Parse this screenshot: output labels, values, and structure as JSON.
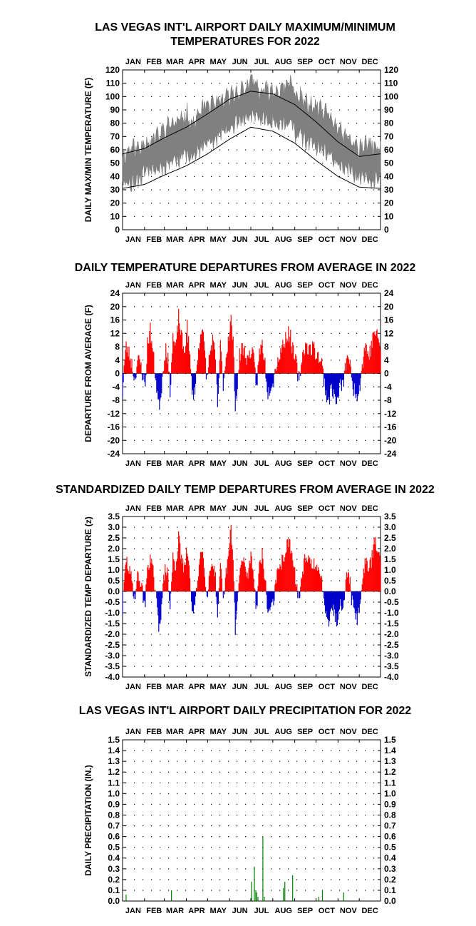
{
  "colors": {
    "range_fill": "#808080",
    "normal_line": "#000000",
    "positive": "#ff0000",
    "negative": "#0000cc",
    "precip": "#008000",
    "gridDots": "#000000"
  },
  "months": [
    "JAN",
    "FEB",
    "MAR",
    "APR",
    "MAY",
    "JUN",
    "JUL",
    "AUG",
    "SEP",
    "OCT",
    "NOV",
    "DEC"
  ],
  "chart_data": [
    {
      "type": "area",
      "title": "LAS VEGAS INT'L AIRPORT DAILY MAXIMUM/MINIMUM",
      "subtitle": "TEMPERATURES FOR 2022",
      "ylabel": "DAILY MAX/MIN TEMPERATURE (F)",
      "ylim": [
        0,
        120
      ],
      "yticks": [
        0,
        10,
        20,
        30,
        40,
        50,
        60,
        70,
        80,
        90,
        100,
        110,
        120
      ],
      "x_label_mode": "month",
      "grid": true,
      "series": [
        {
          "name": "Daily max/min range",
          "kind": "band",
          "high_knots": [
            [
              1,
              55
            ],
            [
              15,
              62
            ],
            [
              25,
              60
            ],
            [
              32,
              68
            ],
            [
              40,
              65
            ],
            [
              50,
              70
            ],
            [
              60,
              75
            ],
            [
              70,
              80
            ],
            [
              80,
              80
            ],
            [
              91,
              88
            ],
            [
              100,
              78
            ],
            [
              110,
              88
            ],
            [
              120,
              95
            ],
            [
              131,
              92
            ],
            [
              140,
              96
            ],
            [
              152,
              100
            ],
            [
              160,
              103
            ],
            [
              170,
              105
            ],
            [
              178,
              108
            ],
            [
              186,
              112
            ],
            [
              195,
              103
            ],
            [
              205,
              104
            ],
            [
              215,
              104
            ],
            [
              225,
              105
            ],
            [
              232,
              106
            ],
            [
              238,
              112
            ],
            [
              244,
              102
            ],
            [
              252,
              100
            ],
            [
              262,
              93
            ],
            [
              274,
              92
            ],
            [
              285,
              88
            ],
            [
              295,
              85
            ],
            [
              305,
              74
            ],
            [
              315,
              70
            ],
            [
              325,
              66
            ],
            [
              335,
              60
            ],
            [
              345,
              64
            ],
            [
              355,
              62
            ],
            [
              365,
              60
            ]
          ],
          "low_knots": [
            [
              1,
              36
            ],
            [
              15,
              35
            ],
            [
              25,
              38
            ],
            [
              32,
              45
            ],
            [
              40,
              46
            ],
            [
              50,
              45
            ],
            [
              60,
              48
            ],
            [
              70,
              52
            ],
            [
              80,
              53
            ],
            [
              91,
              58
            ],
            [
              100,
              55
            ],
            [
              110,
              60
            ],
            [
              120,
              65
            ],
            [
              131,
              68
            ],
            [
              140,
              72
            ],
            [
              152,
              76
            ],
            [
              160,
              80
            ],
            [
              170,
              82
            ],
            [
              178,
              85
            ],
            [
              186,
              85
            ],
            [
              195,
              84
            ],
            [
              205,
              82
            ],
            [
              215,
              82
            ],
            [
              225,
              80
            ],
            [
              232,
              78
            ],
            [
              238,
              82
            ],
            [
              244,
              72
            ],
            [
              252,
              70
            ],
            [
              262,
              66
            ],
            [
              274,
              62
            ],
            [
              285,
              58
            ],
            [
              295,
              54
            ],
            [
              305,
              50
            ],
            [
              315,
              46
            ],
            [
              325,
              42
            ],
            [
              335,
              40
            ],
            [
              345,
              38
            ],
            [
              355,
              36
            ],
            [
              365,
              40
            ]
          ]
        },
        {
          "name": "Normal high",
          "kind": "line",
          "knots": [
            [
              1,
              57
            ],
            [
              32,
              61
            ],
            [
              60,
              69
            ],
            [
              91,
              77
            ],
            [
              121,
              87
            ],
            [
              152,
              98
            ],
            [
              182,
              104
            ],
            [
              213,
              102
            ],
            [
              244,
              94
            ],
            [
              274,
              81
            ],
            [
              305,
              66
            ],
            [
              335,
              55
            ],
            [
              365,
              57
            ]
          ]
        },
        {
          "name": "Normal low",
          "kind": "line",
          "knots": [
            [
              1,
              31
            ],
            [
              32,
              34
            ],
            [
              60,
              41
            ],
            [
              91,
              48
            ],
            [
              121,
              57
            ],
            [
              152,
              68
            ],
            [
              182,
              77
            ],
            [
              213,
              74
            ],
            [
              244,
              65
            ],
            [
              274,
              52
            ],
            [
              305,
              40
            ],
            [
              335,
              32
            ],
            [
              365,
              31
            ]
          ]
        }
      ]
    },
    {
      "type": "bar",
      "title": "DAILY TEMPERATURE DEPARTURES FROM AVERAGE IN 2022",
      "ylabel": "DEPARTURE FROM AVERAGE (F)",
      "ylim": [
        -24,
        24
      ],
      "yticks": [
        -24,
        -20,
        -16,
        -12,
        -8,
        -4,
        0,
        4,
        8,
        12,
        16,
        20,
        24
      ],
      "x_label_mode": "month",
      "grid": true,
      "day_knots": [
        [
          1,
          -6
        ],
        [
          3,
          2
        ],
        [
          6,
          8
        ],
        [
          10,
          6
        ],
        [
          14,
          3
        ],
        [
          18,
          -2
        ],
        [
          22,
          4
        ],
        [
          26,
          3
        ],
        [
          30,
          -1
        ],
        [
          33,
          -4
        ],
        [
          36,
          9
        ],
        [
          40,
          13
        ],
        [
          44,
          6
        ],
        [
          48,
          -2
        ],
        [
          52,
          -10
        ],
        [
          55,
          -6
        ],
        [
          59,
          3
        ],
        [
          62,
          8
        ],
        [
          65,
          4
        ],
        [
          68,
          -5
        ],
        [
          72,
          11
        ],
        [
          76,
          7
        ],
        [
          80,
          17
        ],
        [
          84,
          11
        ],
        [
          88,
          6
        ],
        [
          92,
          14
        ],
        [
          96,
          4
        ],
        [
          100,
          -7
        ],
        [
          104,
          -3
        ],
        [
          108,
          7
        ],
        [
          112,
          14
        ],
        [
          116,
          9
        ],
        [
          120,
          -2
        ],
        [
          124,
          6
        ],
        [
          128,
          10
        ],
        [
          132,
          4
        ],
        [
          135,
          -10
        ],
        [
          139,
          8
        ],
        [
          143,
          -3
        ],
        [
          147,
          5
        ],
        [
          151,
          12
        ],
        [
          154,
          16
        ],
        [
          157,
          9
        ],
        [
          160,
          -9
        ],
        [
          163,
          -4
        ],
        [
          166,
          5
        ],
        [
          170,
          8
        ],
        [
          174,
          6
        ],
        [
          178,
          4
        ],
        [
          182,
          7
        ],
        [
          186,
          4
        ],
        [
          190,
          -4
        ],
        [
          194,
          6
        ],
        [
          198,
          9
        ],
        [
          202,
          3
        ],
        [
          206,
          -6
        ],
        [
          210,
          -3
        ],
        [
          214,
          -2
        ],
        [
          218,
          3
        ],
        [
          222,
          5
        ],
        [
          226,
          8
        ],
        [
          230,
          10
        ],
        [
          234,
          12
        ],
        [
          238,
          11
        ],
        [
          242,
          6
        ],
        [
          246,
          3
        ],
        [
          250,
          -3
        ],
        [
          254,
          5
        ],
        [
          258,
          8
        ],
        [
          262,
          8
        ],
        [
          266,
          7
        ],
        [
          270,
          8
        ],
        [
          274,
          6
        ],
        [
          278,
          5
        ],
        [
          282,
          3
        ],
        [
          286,
          -3
        ],
        [
          289,
          -7
        ],
        [
          292,
          -8
        ],
        [
          296,
          -4
        ],
        [
          300,
          -7
        ],
        [
          304,
          -9
        ],
        [
          308,
          -3
        ],
        [
          312,
          -4
        ],
        [
          316,
          3
        ],
        [
          320,
          6
        ],
        [
          324,
          -2
        ],
        [
          328,
          -5
        ],
        [
          332,
          -6
        ],
        [
          336,
          -3
        ],
        [
          340,
          4
        ],
        [
          344,
          9
        ],
        [
          348,
          5
        ],
        [
          352,
          8
        ],
        [
          356,
          13
        ],
        [
          360,
          11
        ],
        [
          365,
          8
        ]
      ]
    },
    {
      "type": "bar",
      "title": "STANDARDIZED DAILY TEMP DEPARTURES FROM AVERAGE IN 2022",
      "ylabel": "STANDARDIZED TEMP DEPARTURE (z)",
      "ylim": [
        -4.0,
        3.5
      ],
      "yticks": [
        -4.0,
        -3.5,
        -3.0,
        -2.5,
        -2.0,
        -1.5,
        -1.0,
        -0.5,
        0.0,
        0.5,
        1.0,
        1.5,
        2.0,
        2.5,
        3.0,
        3.5
      ],
      "x_label_mode": "month",
      "grid": true,
      "day_knots": [
        [
          1,
          -0.9
        ],
        [
          3,
          0.3
        ],
        [
          6,
          1.5
        ],
        [
          10,
          1.0
        ],
        [
          14,
          0.5
        ],
        [
          18,
          -0.3
        ],
        [
          22,
          0.7
        ],
        [
          26,
          0.5
        ],
        [
          30,
          -0.2
        ],
        [
          33,
          -0.6
        ],
        [
          36,
          1.2
        ],
        [
          40,
          1.5
        ],
        [
          44,
          0.9
        ],
        [
          48,
          -0.3
        ],
        [
          52,
          -1.6
        ],
        [
          55,
          -1.0
        ],
        [
          59,
          0.5
        ],
        [
          62,
          1.2
        ],
        [
          65,
          0.6
        ],
        [
          68,
          -0.8
        ],
        [
          72,
          1.6
        ],
        [
          76,
          1.1
        ],
        [
          80,
          2.5
        ],
        [
          84,
          1.6
        ],
        [
          88,
          0.9
        ],
        [
          92,
          2.0
        ],
        [
          96,
          0.6
        ],
        [
          100,
          -1.1
        ],
        [
          104,
          -0.5
        ],
        [
          108,
          1.0
        ],
        [
          112,
          2.0
        ],
        [
          116,
          1.4
        ],
        [
          120,
          -0.3
        ],
        [
          124,
          0.9
        ],
        [
          128,
          1.5
        ],
        [
          132,
          0.6
        ],
        [
          135,
          -1.5
        ],
        [
          139,
          1.2
        ],
        [
          143,
          -0.5
        ],
        [
          147,
          0.8
        ],
        [
          151,
          1.8
        ],
        [
          154,
          3.0
        ],
        [
          157,
          1.4
        ],
        [
          160,
          -1.7
        ],
        [
          163,
          -0.6
        ],
        [
          166,
          0.8
        ],
        [
          170,
          1.5
        ],
        [
          174,
          1.1
        ],
        [
          178,
          0.7
        ],
        [
          182,
          1.8
        ],
        [
          186,
          0.8
        ],
        [
          190,
          -0.9
        ],
        [
          194,
          1.3
        ],
        [
          198,
          1.7
        ],
        [
          202,
          0.6
        ],
        [
          206,
          -1.1
        ],
        [
          210,
          -0.6
        ],
        [
          214,
          -0.4
        ],
        [
          218,
          0.6
        ],
        [
          222,
          1.0
        ],
        [
          226,
          1.4
        ],
        [
          230,
          1.8
        ],
        [
          234,
          2.2
        ],
        [
          238,
          2.1
        ],
        [
          242,
          1.1
        ],
        [
          246,
          0.5
        ],
        [
          250,
          -0.5
        ],
        [
          254,
          0.8
        ],
        [
          258,
          1.4
        ],
        [
          262,
          1.4
        ],
        [
          266,
          1.3
        ],
        [
          270,
          1.4
        ],
        [
          274,
          1.0
        ],
        [
          278,
          0.8
        ],
        [
          282,
          0.5
        ],
        [
          286,
          -0.5
        ],
        [
          289,
          -1.1
        ],
        [
          292,
          -1.3
        ],
        [
          296,
          -0.6
        ],
        [
          300,
          -1.1
        ],
        [
          304,
          -1.4
        ],
        [
          308,
          -0.5
        ],
        [
          312,
          -0.6
        ],
        [
          316,
          0.5
        ],
        [
          320,
          1.0
        ],
        [
          324,
          -0.3
        ],
        [
          328,
          -0.8
        ],
        [
          332,
          -1.4
        ],
        [
          336,
          -0.5
        ],
        [
          340,
          0.6
        ],
        [
          344,
          1.6
        ],
        [
          348,
          0.9
        ],
        [
          352,
          1.4
        ],
        [
          356,
          2.4
        ],
        [
          360,
          2.0
        ],
        [
          365,
          1.4
        ]
      ]
    },
    {
      "type": "bar",
      "title": "LAS VEGAS INT'L AIRPORT DAILY PRECIPITATION FOR 2022",
      "ylabel": "DAILY PRECIPITATION (IN.)",
      "ylim": [
        0,
        1.5
      ],
      "yticks": [
        0.0,
        0.1,
        0.2,
        0.3,
        0.4,
        0.5,
        0.6,
        0.7,
        0.8,
        0.9,
        1.0,
        1.1,
        1.2,
        1.3,
        1.4,
        1.5
      ],
      "x_label_mode": "month",
      "grid": true,
      "x": [
        6,
        70,
        183,
        187,
        189,
        190,
        192,
        199,
        201,
        228,
        230,
        241,
        278,
        283,
        313
      ],
      "values": [
        0.06,
        0.1,
        0.18,
        0.32,
        0.1,
        0.08,
        0.04,
        0.6,
        0.04,
        0.12,
        0.18,
        0.24,
        0.04,
        0.1,
        0.08
      ]
    }
  ]
}
